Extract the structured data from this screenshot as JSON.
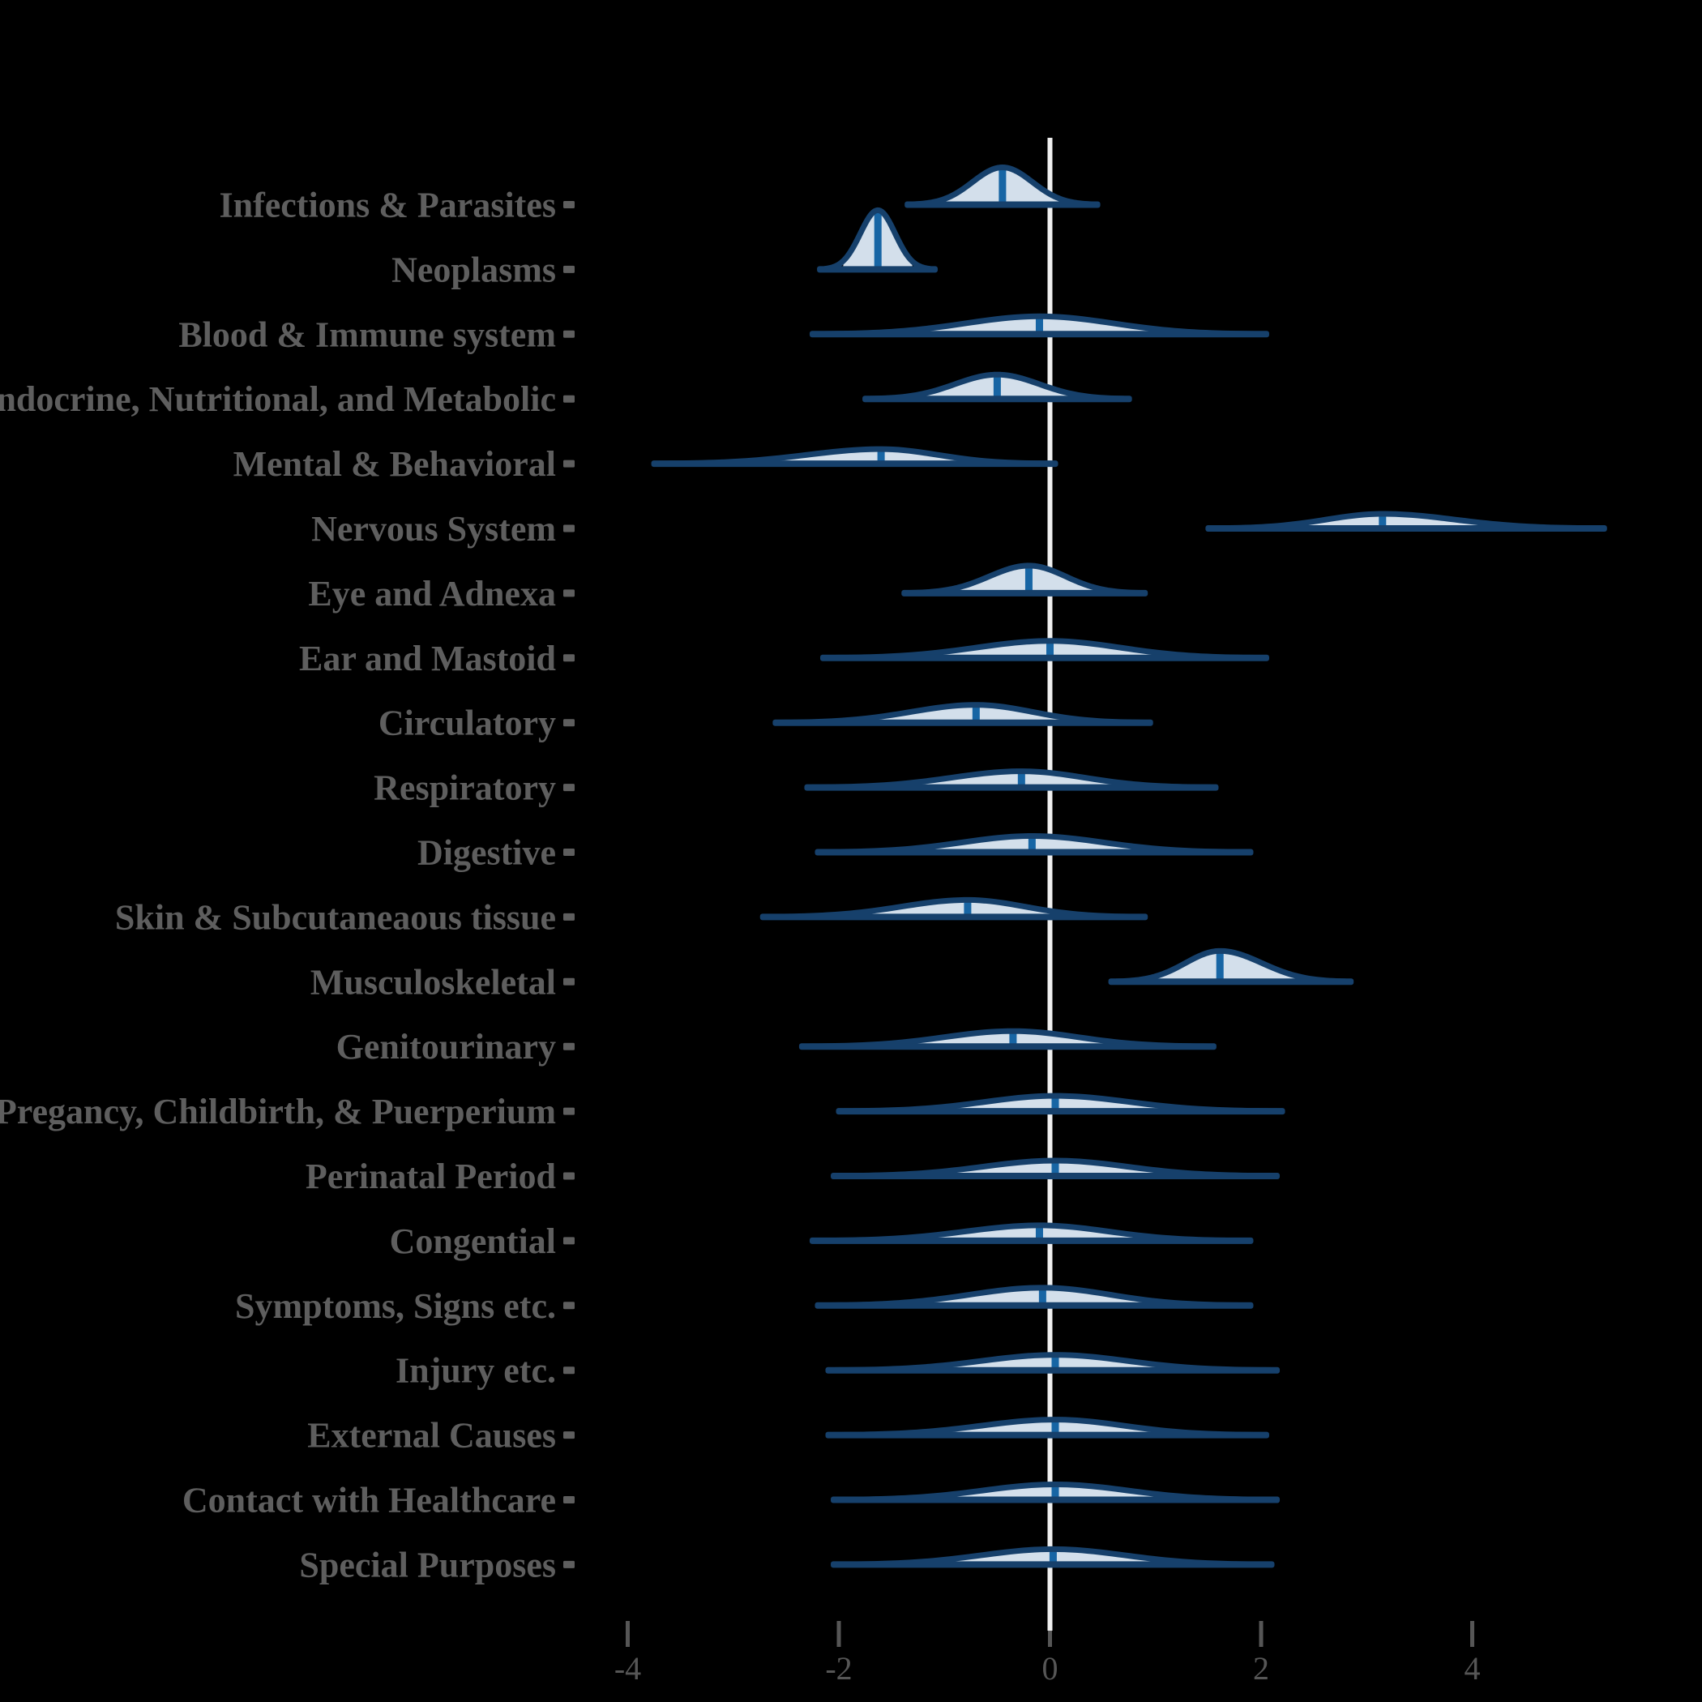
{
  "figure": {
    "title": "",
    "background": "#000000",
    "colors": {
      "outline": "#16406b",
      "fill": "#d3dfeb",
      "median_line": "#1765a4",
      "reference_line": "#efefef",
      "label_text": "#5e5e5e",
      "axis_tick": "#565656"
    }
  },
  "chart_data": {
    "type": "area",
    "subtype": "ridgeline-density-violin",
    "title": "",
    "xlabel": "",
    "ylabel": "",
    "xlim": [
      -4.6,
      5.6
    ],
    "x_ticks": [
      -4,
      -2,
      0,
      2,
      4
    ],
    "x_tick_labels": [
      "-4",
      "-2",
      "0",
      "2",
      "4"
    ],
    "reference_x": 0,
    "grid": false,
    "legend": "none",
    "note_fill_interval": "central ~95% of each density is shaded; tails unshaded; vertical bar = median",
    "rows": [
      {
        "label": "Infections & Parasites",
        "median": -0.45,
        "min": -1.3,
        "max": 0.4,
        "peak": 46
      },
      {
        "label": "Neoplasms",
        "median": -1.63,
        "min": -2.13,
        "max": -1.14,
        "peak": 73
      },
      {
        "label": "Blood & Immune system",
        "median": -0.1,
        "min": -2.2,
        "max": 2.0,
        "peak": 22
      },
      {
        "label": "Endocrine, Nutritional, and Metabolic",
        "median": -0.5,
        "min": -1.7,
        "max": 0.7,
        "peak": 30
      },
      {
        "label": "Mental & Behavioral",
        "median": -1.6,
        "min": -3.7,
        "max": 0.0,
        "peak": 18
      },
      {
        "label": "Nervous System",
        "median": 3.15,
        "min": 1.55,
        "max": 5.2,
        "peak": 18
      },
      {
        "label": "Eye and Adnexa",
        "median": -0.2,
        "min": -1.33,
        "max": 0.85,
        "peak": 34
      },
      {
        "label": "Ear and Mastoid",
        "median": 0.0,
        "min": -2.1,
        "max": 2.0,
        "peak": 21
      },
      {
        "label": "Circulatory",
        "median": -0.7,
        "min": -2.55,
        "max": 0.9,
        "peak": 22
      },
      {
        "label": "Respiratory",
        "median": -0.27,
        "min": -2.25,
        "max": 1.52,
        "peak": 20
      },
      {
        "label": "Digestive",
        "median": -0.17,
        "min": -2.15,
        "max": 1.85,
        "peak": 20
      },
      {
        "label": "Skin & Subcutaneaous tissue",
        "median": -0.78,
        "min": -2.67,
        "max": 0.85,
        "peak": 21
      },
      {
        "label": "Musculoskeletal",
        "median": 1.61,
        "min": 0.63,
        "max": 2.8,
        "peak": 38
      },
      {
        "label": "Genitourinary",
        "median": -0.35,
        "min": -2.3,
        "max": 1.5,
        "peak": 19
      },
      {
        "label": "Pregancy, Childbirth, & Puerperium",
        "median": 0.05,
        "min": -1.95,
        "max": 2.15,
        "peak": 19
      },
      {
        "label": "Perinatal Period",
        "median": 0.05,
        "min": -2.0,
        "max": 2.1,
        "peak": 19
      },
      {
        "label": "Congential",
        "median": -0.1,
        "min": -2.2,
        "max": 1.85,
        "peak": 19
      },
      {
        "label": "Symptoms, Signs etc.",
        "median": -0.07,
        "min": -2.15,
        "max": 1.85,
        "peak": 22
      },
      {
        "label": "Injury etc.",
        "median": 0.05,
        "min": -2.05,
        "max": 2.1,
        "peak": 19
      },
      {
        "label": "External Causes",
        "median": 0.05,
        "min": -2.05,
        "max": 2.0,
        "peak": 19
      },
      {
        "label": "Contact with Healthcare",
        "median": 0.05,
        "min": -2.0,
        "max": 2.1,
        "peak": 19
      },
      {
        "label": "Special Purposes",
        "median": 0.03,
        "min": -2.0,
        "max": 2.05,
        "peak": 19
      }
    ]
  }
}
